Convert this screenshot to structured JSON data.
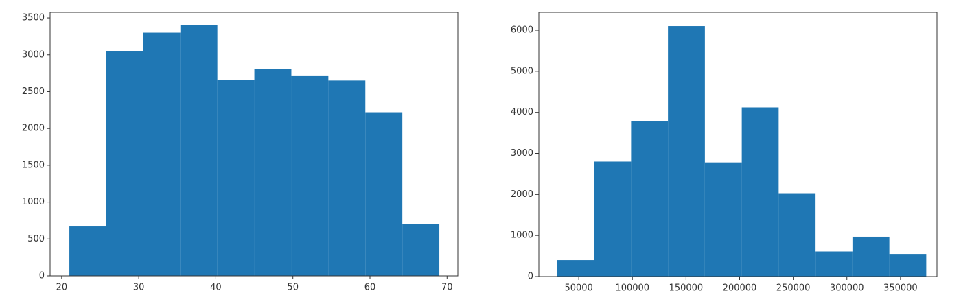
{
  "chart_data": [
    {
      "type": "histogram",
      "color": "#1f77b4",
      "bins": [
        21,
        25.8,
        30.6,
        35.4,
        40.2,
        45,
        49.8,
        54.6,
        59.4,
        64.2,
        69
      ],
      "values": [
        670,
        3050,
        3300,
        3400,
        2660,
        2810,
        2710,
        2650,
        2220,
        700
      ],
      "xlim": [
        18.5,
        71.4
      ],
      "xticks": [
        20,
        30,
        40,
        50,
        60,
        70
      ],
      "ylim": [
        0,
        3575
      ],
      "yticks": [
        0,
        500,
        1000,
        1500,
        2000,
        2500,
        3000,
        3500
      ]
    },
    {
      "type": "histogram",
      "color": "#1f77b4",
      "bins": [
        30000,
        64400,
        98800,
        133200,
        167600,
        202000,
        236400,
        270800,
        305200,
        339600,
        374000
      ],
      "values": [
        400,
        2800,
        3780,
        6100,
        2780,
        4120,
        2030,
        610,
        970,
        550
      ],
      "xlim": [
        12800,
        384000
      ],
      "xticks": [
        50000,
        100000,
        150000,
        200000,
        250000,
        300000,
        350000
      ],
      "ylim": [
        0,
        6435
      ],
      "yticks": [
        0,
        1000,
        2000,
        3000,
        4000,
        5000,
        6000
      ]
    }
  ]
}
